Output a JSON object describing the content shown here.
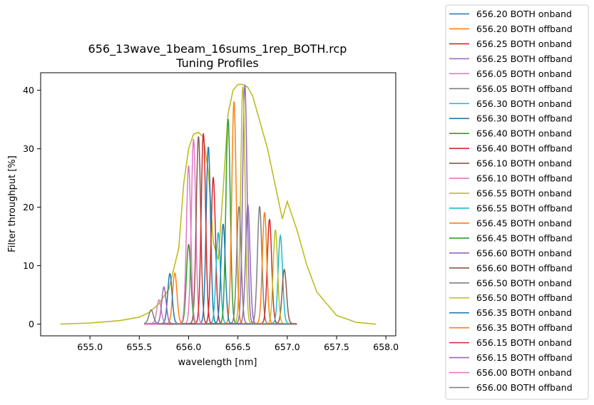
{
  "chart_data": {
    "type": "line",
    "title": "656_13wave_1beam_16sums_1rep_BOTH.rcp",
    "subtitle": "Tuning Profiles",
    "xlabel": "wavelength [nm]",
    "ylabel": "Filter throughput [%]",
    "xlim": [
      654.5,
      658.1
    ],
    "ylim": [
      -2,
      43
    ],
    "xticks": [
      "655.0",
      "655.5",
      "656.0",
      "656.5",
      "657.0",
      "657.5",
      "658.0"
    ],
    "yticks": [
      "0",
      "10",
      "20",
      "30",
      "40"
    ],
    "grid": false,
    "legend_position": "right, outside plot",
    "envelope": {
      "color": "#bcbd22",
      "x": [
        654.7,
        655.0,
        655.3,
        655.5,
        655.6,
        655.7,
        655.8,
        655.9,
        655.95,
        656.0,
        656.05,
        656.1,
        656.15,
        656.2,
        656.25,
        656.3,
        656.35,
        656.4,
        656.45,
        656.5,
        656.55,
        656.6,
        656.65,
        656.7,
        656.8,
        656.9,
        656.95,
        657.0,
        657.1,
        657.2,
        657.3,
        657.5,
        657.7,
        657.9
      ],
      "y": [
        0.0,
        0.2,
        0.6,
        1.2,
        2.0,
        3.5,
        6.0,
        13.0,
        24.0,
        30.0,
        32.5,
        32.8,
        32.0,
        26.0,
        14.0,
        11.0,
        23.0,
        36.0,
        40.0,
        41.0,
        41.0,
        40.5,
        39.0,
        36.0,
        30.0,
        22.0,
        18.0,
        21.0,
        16.0,
        10.0,
        5.5,
        1.5,
        0.3,
        0.0
      ]
    },
    "series": [
      {
        "name": "656.20 BOTH onband",
        "color": "#1f77b4",
        "center": 656.2,
        "peak": 30.2,
        "onband": true
      },
      {
        "name": "656.20 BOTH offband",
        "color": "#ff7f0e",
        "center": 655.86,
        "peak": 8.6,
        "onband": false
      },
      {
        "name": "656.25 BOTH onband",
        "color": "#d62728",
        "center": 656.25,
        "peak": 25.0,
        "onband": true
      },
      {
        "name": "656.25 BOTH offband",
        "color": "#9467bd",
        "center": 656.57,
        "peak": 40.8,
        "onband": false
      },
      {
        "name": "656.05 BOTH onband",
        "color": "#e377c2",
        "center": 656.05,
        "peak": 31.5,
        "onband": true
      },
      {
        "name": "656.05 BOTH offband",
        "color": "#7f7f7f",
        "center": 656.72,
        "peak": 20.0,
        "onband": false
      },
      {
        "name": "656.30 BOTH onband",
        "color": "#17becf",
        "center": 656.3,
        "peak": 15.5,
        "onband": true
      },
      {
        "name": "656.30 BOTH offband",
        "color": "#1f77b4",
        "center": 655.81,
        "peak": 8.5,
        "onband": false
      },
      {
        "name": "656.40 BOTH onband",
        "color": "#2ca02c",
        "center": 656.4,
        "peak": 35.0,
        "onband": true
      },
      {
        "name": "656.40 BOTH offband",
        "color": "#d62728",
        "center": 656.82,
        "peak": 17.8,
        "onband": false
      },
      {
        "name": "656.10 BOTH onband",
        "color": "#8c564b",
        "center": 656.1,
        "peak": 32.0,
        "onband": true
      },
      {
        "name": "656.10 BOTH offband",
        "color": "#e377c2",
        "center": 655.7,
        "peak": 4.0,
        "onband": false
      },
      {
        "name": "656.55 BOTH onband",
        "color": "#bcbd22",
        "center": 656.55,
        "peak": 40.5,
        "onband": true
      },
      {
        "name": "656.55 BOTH offband",
        "color": "#17becf",
        "center": 656.93,
        "peak": 15.0,
        "onband": false
      },
      {
        "name": "656.45 BOTH onband",
        "color": "#ff7f0e",
        "center": 656.46,
        "peak": 38.0,
        "onband": true
      },
      {
        "name": "656.45 BOTH offband",
        "color": "#2ca02c",
        "center": 656.0,
        "peak": 13.5,
        "onband": false
      },
      {
        "name": "656.60 BOTH onband",
        "color": "#9467bd",
        "center": 656.6,
        "peak": 20.3,
        "onband": true
      },
      {
        "name": "656.60 BOTH offband",
        "color": "#8c564b",
        "center": 656.97,
        "peak": 9.2,
        "onband": false
      },
      {
        "name": "656.50 BOTH onband",
        "color": "#7f7f7f",
        "center": 656.51,
        "peak": 20.0,
        "onband": true
      },
      {
        "name": "656.50 BOTH offband",
        "color": "#bcbd22",
        "center": 656.88,
        "peak": 16.0,
        "onband": false
      },
      {
        "name": "656.35 BOTH onband",
        "color": "#1f77b4",
        "center": 656.35,
        "peak": 17.0,
        "onband": true
      },
      {
        "name": "656.35 BOTH offband",
        "color": "#ff7f0e",
        "center": 656.77,
        "peak": 19.0,
        "onband": false
      },
      {
        "name": "656.15 BOTH onband",
        "color": "#d62728",
        "center": 656.15,
        "peak": 32.5,
        "onband": true
      },
      {
        "name": "656.15 BOTH offband",
        "color": "#9467bd",
        "center": 655.75,
        "peak": 6.2,
        "onband": false
      },
      {
        "name": "656.00 BOTH onband",
        "color": "#e377c2",
        "center": 656.0,
        "peak": 27.0,
        "onband": true
      },
      {
        "name": "656.00 BOTH offband",
        "color": "#7f7f7f",
        "center": 655.62,
        "peak": 2.3,
        "onband": false
      }
    ]
  }
}
